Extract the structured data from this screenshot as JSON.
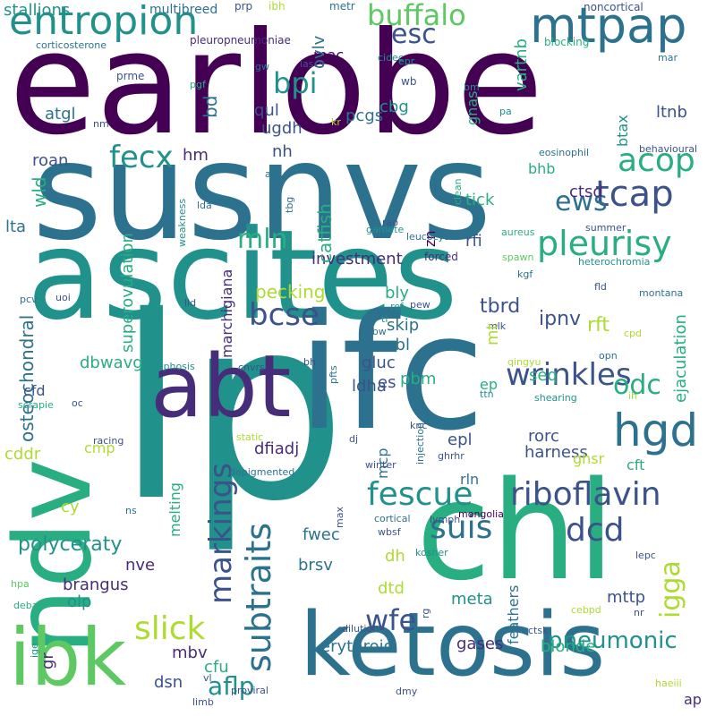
{
  "palette": {
    "dark-purple": "#440154",
    "indigo": "#472c7a",
    "slate-blue": "#3b528b",
    "steel-blue": "#2c728e",
    "teal": "#21918c",
    "sea-green": "#28ae80",
    "green": "#5ec962",
    "lime": "#addc30",
    "yellow": "#fde725"
  },
  "words": [
    {
      "text": "earlobe",
      "color": "#440154"
    },
    {
      "text": "susnvs",
      "color": "#2c728e"
    },
    {
      "text": "ascites",
      "color": "#21918c"
    },
    {
      "text": "lp",
      "color": "#21918c"
    },
    {
      "text": "ifc",
      "color": "#2c728e"
    },
    {
      "text": "chl",
      "color": "#28ae80"
    },
    {
      "text": "ndv",
      "color": "#28ae80"
    },
    {
      "text": "abt",
      "color": "#472c7a"
    },
    {
      "text": "ketosis",
      "color": "#2c728e"
    },
    {
      "text": "ibk",
      "color": "#5ec962"
    },
    {
      "text": "entropion",
      "color": "#21918c"
    },
    {
      "text": "mtpap",
      "color": "#2c728e"
    },
    {
      "text": "buffalo",
      "color": "#5ec962"
    },
    {
      "text": "esc",
      "color": "#3b528b"
    },
    {
      "text": "riboflavin",
      "color": "#3b528b"
    },
    {
      "text": "hgd",
      "color": "#2c728e"
    },
    {
      "text": "pleurisy",
      "color": "#28ae80"
    },
    {
      "text": "wrinkles",
      "color": "#3b528b"
    },
    {
      "text": "fescue",
      "color": "#21918c"
    },
    {
      "text": "tcap",
      "color": "#3b528b"
    },
    {
      "text": "acop",
      "color": "#28ae80"
    },
    {
      "text": "markings",
      "color": "#3b528b"
    },
    {
      "text": "subtraits",
      "color": "#2c728e"
    },
    {
      "text": "wfe",
      "color": "#3b528b"
    },
    {
      "text": "dcd",
      "color": "#3b528b"
    },
    {
      "text": "suis",
      "color": "#2c728e"
    },
    {
      "text": "slick",
      "color": "#addc30"
    },
    {
      "text": "bcse",
      "color": "#3b528b"
    },
    {
      "text": "fecx",
      "color": "#21918c"
    },
    {
      "text": "mln",
      "color": "#28ae80"
    },
    {
      "text": "ews",
      "color": "#2c728e"
    },
    {
      "text": "odc",
      "color": "#28ae80"
    },
    {
      "text": "igga",
      "color": "#addc30"
    },
    {
      "text": "bpi",
      "color": "#21918c"
    },
    {
      "text": "pneumonic",
      "color": "#21918c"
    },
    {
      "text": "aflp",
      "color": "#21918c"
    },
    {
      "text": "polyceraty",
      "color": "#21918c"
    },
    {
      "text": "investment",
      "color": "#472c7a"
    },
    {
      "text": "ipnv",
      "color": "#3b528b"
    },
    {
      "text": "tbrd",
      "color": "#3b528b"
    },
    {
      "text": "rft",
      "color": "#addc30"
    },
    {
      "text": "stallions",
      "color": "#21918c"
    },
    {
      "text": "multibreed",
      "color": "#2c728e"
    },
    {
      "text": "prp",
      "color": "#3b528b"
    },
    {
      "text": "ibh",
      "color": "#addc30"
    },
    {
      "text": "metr",
      "color": "#2c728e"
    },
    {
      "text": "noncortical",
      "color": "#3b528b"
    },
    {
      "text": "corticosterone",
      "color": "#2c728e"
    },
    {
      "text": "pleuropneumoniae",
      "color": "#472c7a"
    },
    {
      "text": "blocking",
      "color": "#28ae80"
    },
    {
      "text": "mac",
      "color": "#440154"
    },
    {
      "text": "ovlv",
      "color": "#2c728e"
    },
    {
      "text": "cidec",
      "color": "#21918c"
    },
    {
      "text": "epr",
      "color": "#21918c"
    },
    {
      "text": "mar",
      "color": "#2c728e"
    },
    {
      "text": "lascs",
      "color": "#3b528b"
    },
    {
      "text": "gw",
      "color": "#2c728e"
    },
    {
      "text": "wb",
      "color": "#3b528b"
    },
    {
      "text": "vartnb",
      "color": "#28ae80"
    },
    {
      "text": "bm",
      "color": "#21918c"
    },
    {
      "text": "prme",
      "color": "#3b528b"
    },
    {
      "text": "pgf",
      "color": "#28ae80"
    },
    {
      "text": "atgl",
      "color": "#2c728e"
    },
    {
      "text": "bd",
      "color": "#2c728e"
    },
    {
      "text": "qul",
      "color": "#3b528b"
    },
    {
      "text": "pcgs",
      "color": "#2c728e"
    },
    {
      "text": "cbg",
      "color": "#21918c"
    },
    {
      "text": "gnas",
      "color": "#28ae80"
    },
    {
      "text": "pa",
      "color": "#21918c"
    },
    {
      "text": "kr",
      "color": "#addc30"
    },
    {
      "text": "ltnb",
      "color": "#3b528b"
    },
    {
      "text": "btax",
      "color": "#21918c"
    },
    {
      "text": "nm",
      "color": "#3b528b"
    },
    {
      "text": "ugdh",
      "color": "#3b528b"
    },
    {
      "text": "eosinophil",
      "color": "#2c728e"
    },
    {
      "text": "behavioural",
      "color": "#3b528b"
    },
    {
      "text": "nh",
      "color": "#3b528b"
    },
    {
      "text": "bhb",
      "color": "#28ae80"
    },
    {
      "text": "clean",
      "color": "#28ae80"
    },
    {
      "text": "roan",
      "color": "#3b528b"
    },
    {
      "text": "hm",
      "color": "#472c7a"
    },
    {
      "text": "catfish",
      "color": "#28ae80"
    },
    {
      "text": "af",
      "color": "#2c728e"
    },
    {
      "text": "wld",
      "color": "#28ae80"
    },
    {
      "text": "ctsd",
      "color": "#472c7a"
    },
    {
      "text": "tick",
      "color": "#28ae80"
    },
    {
      "text": "weakness",
      "color": "#21918c"
    },
    {
      "text": "lda",
      "color": "#2c728e"
    },
    {
      "text": "tbg",
      "color": "#2c728e"
    },
    {
      "text": "rao",
      "color": "#3b528b"
    },
    {
      "text": "gamete",
      "color": "#21918c"
    },
    {
      "text": "forced",
      "color": "#472c7a"
    },
    {
      "text": "summer",
      "color": "#3b528b"
    },
    {
      "text": "aureus",
      "color": "#28ae80"
    },
    {
      "text": "lta",
      "color": "#2c728e"
    },
    {
      "text": "marchigiana",
      "color": "#472c7a"
    },
    {
      "text": "zn",
      "color": "#440154"
    },
    {
      "text": "leucocyte",
      "color": "#2c728e"
    },
    {
      "text": "rfi",
      "color": "#3b528b"
    },
    {
      "text": "spawn",
      "color": "#5ec962"
    },
    {
      "text": "heterochromia",
      "color": "#21918c"
    },
    {
      "text": "kgf",
      "color": "#2c728e"
    },
    {
      "text": "pcv",
      "color": "#2c728e"
    },
    {
      "text": "uoi",
      "color": "#3b528b"
    },
    {
      "text": "ref",
      "color": "#21918c"
    },
    {
      "text": "pew",
      "color": "#3b528b"
    },
    {
      "text": "fld",
      "color": "#3b528b"
    },
    {
      "text": "montana",
      "color": "#2c728e"
    },
    {
      "text": "lld",
      "color": "#3b528b"
    },
    {
      "text": "superovulation",
      "color": "#28ae80"
    },
    {
      "text": "pecking",
      "color": "#addc30"
    },
    {
      "text": "bly",
      "color": "#28ae80"
    },
    {
      "text": "ti",
      "color": "#21918c"
    },
    {
      "text": "cpd",
      "color": "#addc30"
    },
    {
      "text": "skip",
      "color": "#2c728e"
    },
    {
      "text": "mlk",
      "color": "#3b528b"
    },
    {
      "text": "abw",
      "color": "#2c728e"
    },
    {
      "text": "mbl",
      "color": "#2c728e"
    },
    {
      "text": "mt",
      "color": "#addc30"
    },
    {
      "text": "ejaculation",
      "color": "#28ae80"
    },
    {
      "text": "osteochondral",
      "color": "#2c728e"
    },
    {
      "text": "dbwavg",
      "color": "#28ae80"
    },
    {
      "text": "kyphosis",
      "color": "#21918c"
    },
    {
      "text": "cnvrs",
      "color": "#3b528b"
    },
    {
      "text": "pfts",
      "color": "#2c728e"
    },
    {
      "text": "bh",
      "color": "#3b528b"
    },
    {
      "text": "gluc",
      "color": "#3b528b"
    },
    {
      "text": "qingyu",
      "color": "#addc30"
    },
    {
      "text": "opn",
      "color": "#2c728e"
    },
    {
      "text": "ep",
      "color": "#28ae80"
    },
    {
      "text": "es",
      "color": "#3b528b"
    },
    {
      "text": "pbm",
      "color": "#28ae80"
    },
    {
      "text": "seq",
      "color": "#28ae80"
    },
    {
      "text": "ih",
      "color": "#addc30"
    },
    {
      "text": "cfd",
      "color": "#3b528b"
    },
    {
      "text": "scrapie",
      "color": "#28ae80"
    },
    {
      "text": "oc",
      "color": "#3b528b"
    },
    {
      "text": "ldha",
      "color": "#3b528b"
    },
    {
      "text": "injection",
      "color": "#2c728e"
    },
    {
      "text": "ttn",
      "color": "#21918c"
    },
    {
      "text": "shearing",
      "color": "#21918c"
    },
    {
      "text": "racing",
      "color": "#3b528b"
    },
    {
      "text": "static",
      "color": "#addc30"
    },
    {
      "text": "knc",
      "color": "#3b528b"
    },
    {
      "text": "rorc",
      "color": "#3b528b"
    },
    {
      "text": "epl",
      "color": "#3b528b"
    },
    {
      "text": "cddr",
      "color": "#addc30"
    },
    {
      "text": "dfiadj",
      "color": "#472c7a"
    },
    {
      "text": "dj",
      "color": "#3b528b"
    },
    {
      "text": "harness",
      "color": "#3b528b"
    },
    {
      "text": "cmp",
      "color": "#addc30"
    },
    {
      "text": "depigmented",
      "color": "#2c728e"
    },
    {
      "text": "mcp",
      "color": "#2c728e"
    },
    {
      "text": "ghrhr",
      "color": "#3b528b"
    },
    {
      "text": "winter",
      "color": "#3b528b"
    },
    {
      "text": "ghsr",
      "color": "#addc30"
    },
    {
      "text": "cft",
      "color": "#28ae80"
    },
    {
      "text": "cy",
      "color": "#addc30"
    },
    {
      "text": "rln",
      "color": "#2c728e"
    },
    {
      "text": "ns",
      "color": "#2c728e"
    },
    {
      "text": "melting",
      "color": "#28ae80"
    },
    {
      "text": "max",
      "color": "#3b528b"
    },
    {
      "text": "lymph",
      "color": "#3b528b"
    },
    {
      "text": "mongolia",
      "color": "#440154"
    },
    {
      "text": "cortical",
      "color": "#2c728e"
    },
    {
      "text": "wbsf",
      "color": "#3b528b"
    },
    {
      "text": "fwec",
      "color": "#2c728e"
    },
    {
      "text": "kosher",
      "color": "#21918c"
    },
    {
      "text": "lepc",
      "color": "#3b528b"
    },
    {
      "text": "dh",
      "color": "#addc30"
    },
    {
      "text": "brsv",
      "color": "#2c728e"
    },
    {
      "text": "feathers",
      "color": "#2c728e"
    },
    {
      "text": "nve",
      "color": "#472c7a"
    },
    {
      "text": "brangus",
      "color": "#472c7a"
    },
    {
      "text": "olp",
      "color": "#21918c"
    },
    {
      "text": "hpa",
      "color": "#5ec962"
    },
    {
      "text": "dtd",
      "color": "#addc30"
    },
    {
      "text": "rg",
      "color": "#3b528b"
    },
    {
      "text": "meta",
      "color": "#21918c"
    },
    {
      "text": "mttp",
      "color": "#3b528b"
    },
    {
      "text": "nr",
      "color": "#3b528b"
    },
    {
      "text": "debao",
      "color": "#28ae80"
    },
    {
      "text": "cebpd",
      "color": "#addc30"
    },
    {
      "text": "blonde",
      "color": "#28ae80"
    },
    {
      "text": "gases",
      "color": "#472c7a"
    },
    {
      "text": "erythroid",
      "color": "#2c728e"
    },
    {
      "text": "dilution",
      "color": "#3b528b"
    },
    {
      "text": "ctsk",
      "color": "#3b528b"
    },
    {
      "text": "gr",
      "color": "#472c7a"
    },
    {
      "text": "mbv",
      "color": "#472c7a"
    },
    {
      "text": "cfu",
      "color": "#28ae80"
    },
    {
      "text": "ige",
      "color": "#21918c"
    },
    {
      "text": "dsn",
      "color": "#3b528b"
    },
    {
      "text": "vl",
      "color": "#3b528b"
    },
    {
      "text": "limb",
      "color": "#3b528b"
    },
    {
      "text": "proviral",
      "color": "#3b528b"
    },
    {
      "text": "dmy",
      "color": "#3b528b"
    },
    {
      "text": "haeiii",
      "color": "#addc30"
    },
    {
      "text": "ap",
      "color": "#472c7a"
    }
  ]
}
